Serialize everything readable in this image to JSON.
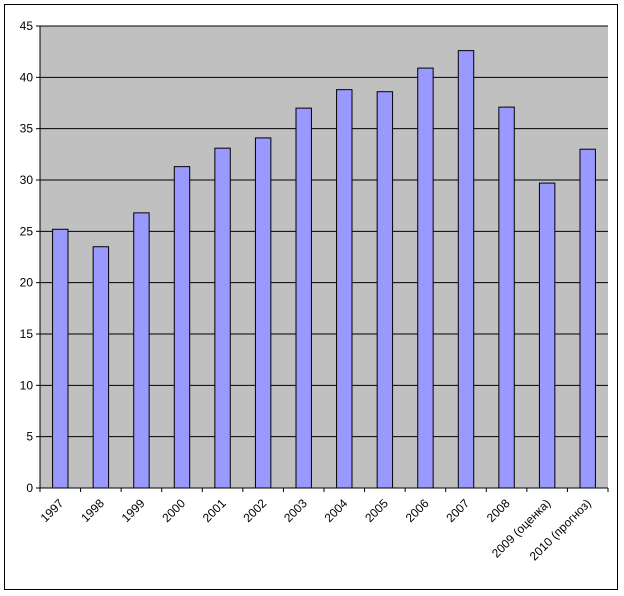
{
  "chart_data": {
    "type": "bar",
    "title": "",
    "xlabel": "",
    "ylabel": "",
    "categories": [
      "1997",
      "1998",
      "1999",
      "2000",
      "2001",
      "2002",
      "2003",
      "2004",
      "2005",
      "2006",
      "2007",
      "2008",
      "2009 (оценка)",
      "2010 (прогноз)"
    ],
    "values": [
      25.2,
      23.5,
      26.8,
      31.3,
      33.1,
      34.1,
      37.0,
      38.8,
      38.6,
      40.9,
      42.6,
      37.1,
      29.7,
      33.0
    ],
    "ylim": [
      0,
      45
    ],
    "yticks": [
      0,
      5,
      10,
      15,
      20,
      25,
      30,
      35,
      40,
      45
    ],
    "grid": true,
    "legend": "none",
    "colors": {
      "bar_fill": "#9999FF",
      "bar_stroke": "#000000",
      "plot_background": "#C0C0C0",
      "gridline": "#000000"
    }
  }
}
